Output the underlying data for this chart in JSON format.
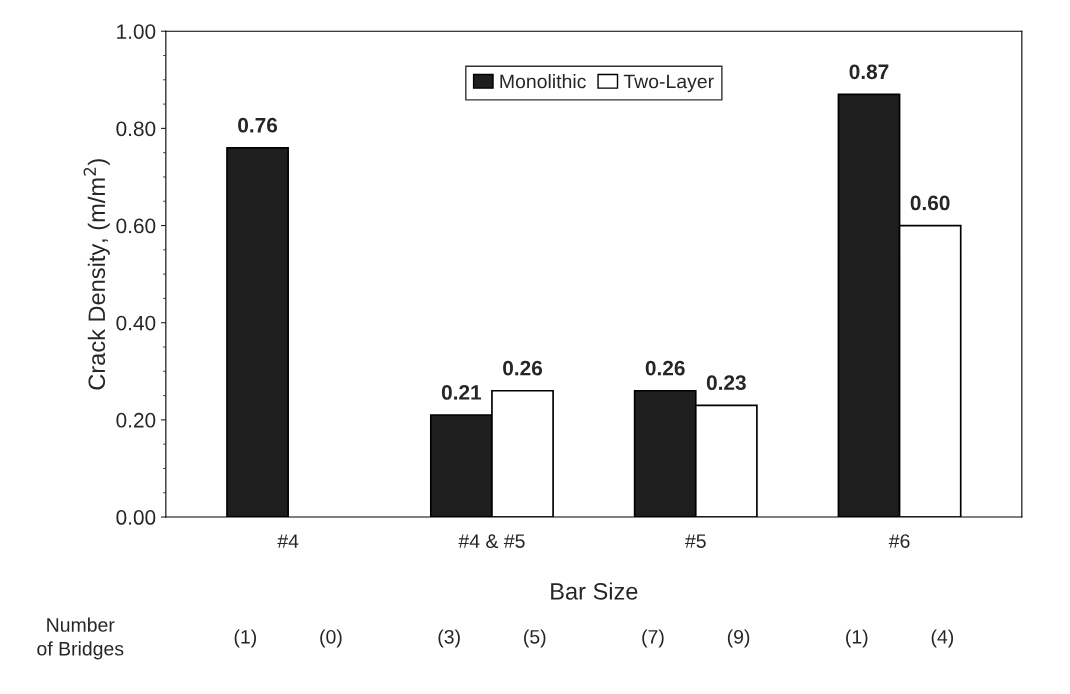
{
  "chart_data": {
    "type": "bar",
    "xlabel": "Bar Size",
    "ylabel": "Crack Density, (m/m$^{2}$)",
    "categories": [
      "#4",
      "#4 & #5",
      "#5",
      "#6"
    ],
    "series": [
      {
        "name": "Monolithic",
        "color": "#1e1e1e",
        "values": [
          0.76,
          0.21,
          0.26,
          0.87
        ],
        "value_labels": [
          "0.76",
          "0.21",
          "0.26",
          "0.87"
        ]
      },
      {
        "name": "Two-Layer",
        "color": "#ffffff",
        "values": [
          null,
          0.26,
          0.23,
          0.6
        ],
        "value_labels": [
          null,
          "0.26",
          "0.23",
          "0.60"
        ]
      }
    ],
    "ylim": [
      0,
      1
    ],
    "yticks": [
      {
        "value": 0,
        "label": "0.00"
      },
      {
        "value": 0.2,
        "label": "0.20"
      },
      {
        "value": 0.4,
        "label": "0.40"
      },
      {
        "value": 0.6,
        "label": "0.60"
      },
      {
        "value": 0.8,
        "label": "0.80"
      },
      {
        "value": 1,
        "label": "1.00"
      }
    ],
    "grid": false,
    "legend": "top",
    "annotations": [
      "Number\nof Bridges",
      "(1)",
      "(0)",
      "(3)",
      "(5)",
      "(7)",
      "(9)",
      "(1)",
      "(4)"
    ]
  }
}
